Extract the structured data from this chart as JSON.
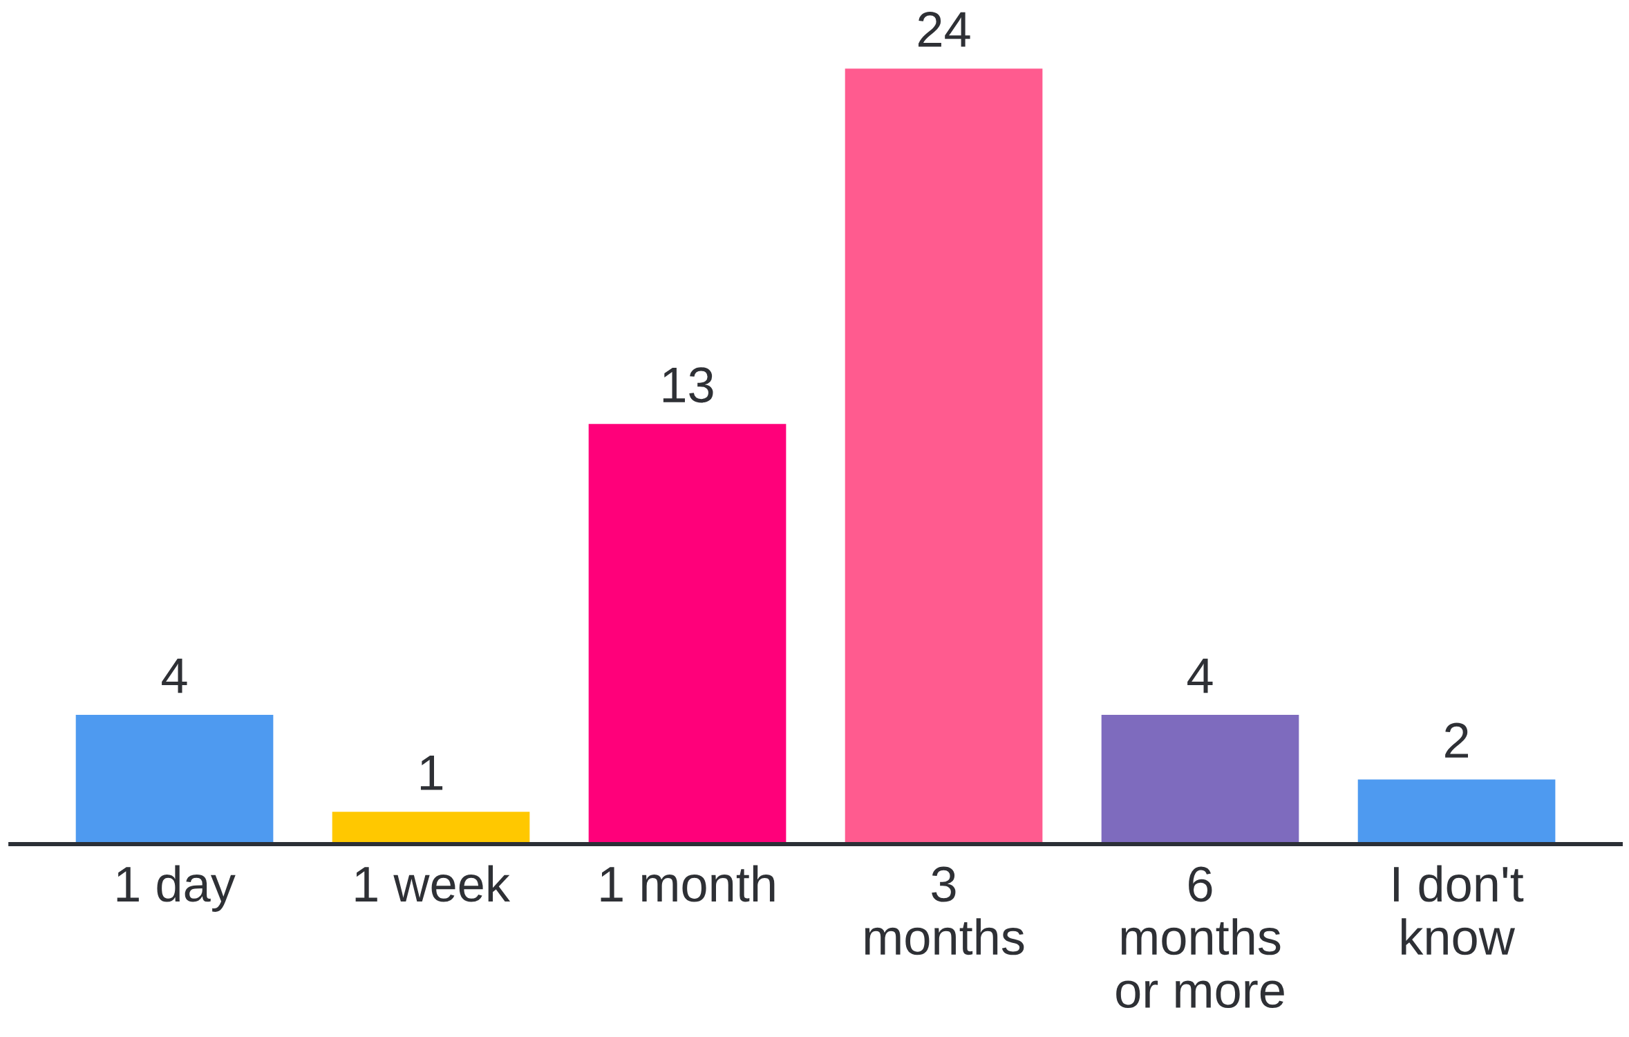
{
  "chart_data": {
    "type": "bar",
    "categories": [
      "1 day",
      "1 week",
      "1 month",
      "3\nmonths",
      "6\nmonths\nor more",
      "I don't\nknow"
    ],
    "values": [
      4,
      1,
      13,
      24,
      4,
      2
    ],
    "colors": [
      "#4e9af0",
      "#ffc800",
      "#ff007a",
      "#ff5b8f",
      "#7e6bbe",
      "#4e9af0"
    ],
    "data_labels": true
  }
}
